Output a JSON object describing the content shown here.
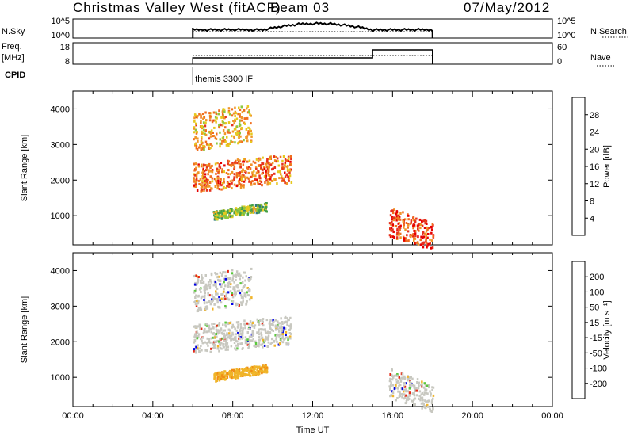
{
  "header": {
    "station": "Christmas Valley West (fitACF)",
    "beam": "Beam 03",
    "date": "07/May/2012"
  },
  "strip_labels": {
    "nsky": "N.Sky",
    "nsky_ticks": [
      "10^5",
      "10^0"
    ],
    "nsky_right_ticks": [
      "10^5",
      "10^0"
    ],
    "nsearch": "N.Search",
    "freq_line1": "Freq.",
    "freq_line2": "[MHz]",
    "freq_ticks": [
      "18",
      "8"
    ],
    "nave_ticks": [
      "60",
      "0"
    ],
    "nave": "Nave",
    "cpid": "CPID",
    "cpid_name": "themis 3300 IF"
  },
  "colors": {
    "power": [
      "#0a00e6",
      "#1f4fa8",
      "#2f7a7a",
      "#46a046",
      "#8dc83c",
      "#e6c81e",
      "#f09628",
      "#f06e1e",
      "#e6321e",
      "#e60000"
    ],
    "velocity": [
      "#0000e6",
      "#1e46b4",
      "#2d8c5a",
      "#5ac83c",
      "#c8c8c0",
      "#f0b428",
      "#f08c14",
      "#f0641e",
      "#e62814",
      "#e60000"
    ]
  },
  "chart_data": [
    {
      "type": "heatmap",
      "name": "power",
      "xlabel": "",
      "ylabel": "Slant Range [km]",
      "x_range": [
        "00:00",
        "00:00"
      ],
      "xlim_hours": [
        0,
        24
      ],
      "ylim": [
        180,
        4500
      ],
      "yticks": [
        "1000",
        "2000",
        "3000",
        "4000"
      ],
      "colorbar": {
        "label": "Power [dB]",
        "ticks": [
          "28",
          "24",
          "20",
          "16",
          "12",
          "8",
          "4"
        ],
        "range": [
          0,
          32
        ]
      },
      "features": [
        {
          "desc": "main band",
          "start_hour": 6,
          "end_hour": 10.9,
          "range_start_km": 1700,
          "range_end_km": 2500,
          "value": 24
        },
        {
          "desc": "upper band",
          "start_hour": 6,
          "end_hour": 8.9,
          "range_start_km": 2850,
          "range_end_km": 3900,
          "value": 20
        },
        {
          "desc": "lower band",
          "start_hour": 7,
          "end_hour": 9.7,
          "range_start_km": 900,
          "range_end_km": 1150,
          "value": 14
        },
        {
          "desc": "afternoon echo",
          "start_hour": 15.8,
          "end_hour": 18,
          "range_start_km": 450,
          "range_end_km": 1300,
          "value": 26
        }
      ]
    },
    {
      "type": "heatmap",
      "name": "velocity",
      "xlabel": "Time UT",
      "ylabel": "Slant Range [km]",
      "x_ticks": [
        "00:00",
        "04:00",
        "08:00",
        "12:00",
        "16:00",
        "20:00",
        "00:00"
      ],
      "xlim_hours": [
        0,
        24
      ],
      "ylim": [
        180,
        4500
      ],
      "yticks": [
        "1000",
        "2000",
        "3000",
        "4000"
      ],
      "colorbar": {
        "label": "Velocity [m s⁻¹]",
        "ticks": [
          "200",
          "100",
          "50",
          "15",
          "-15",
          "-50",
          "-100",
          "-200"
        ],
        "range": [
          -250,
          250
        ]
      }
    }
  ]
}
